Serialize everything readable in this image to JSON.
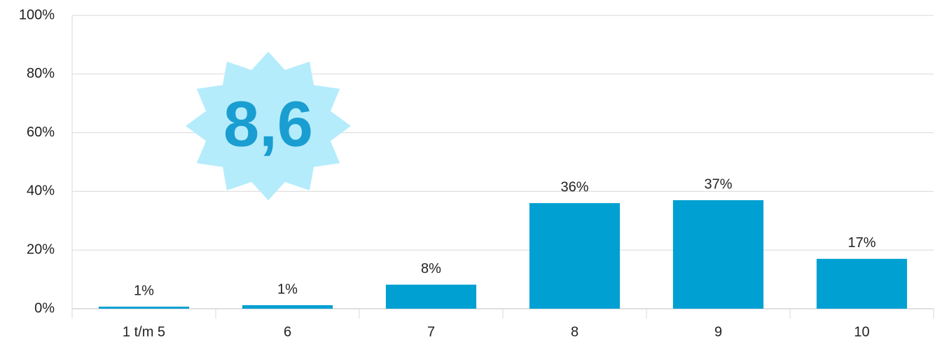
{
  "chart_data": {
    "type": "bar",
    "categories": [
      "1 t/m 5",
      "6",
      "7",
      "8",
      "9",
      "10"
    ],
    "values": [
      0.7,
      1.2,
      8.2,
      36,
      37,
      17
    ],
    "value_labels": [
      "1%",
      "1%",
      "8%",
      "36%",
      "37%",
      "17%"
    ],
    "color": "#00a0d2",
    "ylim": [
      0,
      100
    ],
    "yticks": [
      {
        "value": 0,
        "label": "0%"
      },
      {
        "value": 20,
        "label": "20%"
      },
      {
        "value": 40,
        "label": "40%"
      },
      {
        "value": 60,
        "label": "60%"
      },
      {
        "value": 80,
        "label": "80%"
      },
      {
        "value": 100,
        "label": "100%"
      }
    ],
    "grid": true,
    "annotation": "8,6"
  }
}
